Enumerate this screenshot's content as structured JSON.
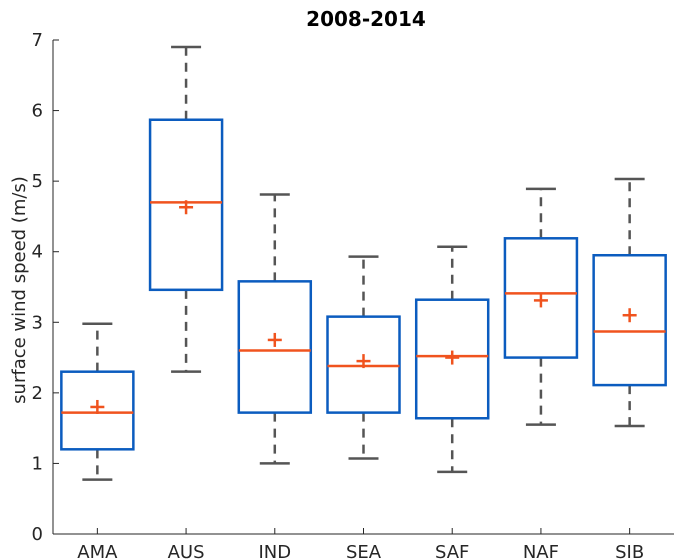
{
  "chart_data": {
    "type": "boxplot",
    "title": "2008-2014",
    "xlabel": "",
    "ylabel": "surface wind speed (m/s)",
    "ylim": [
      0,
      7
    ],
    "yticks": [
      "0",
      "1",
      "2",
      "3",
      "4",
      "5",
      "6",
      "7"
    ],
    "categories": [
      "AMA",
      "AUS",
      "IND",
      "SEA",
      "SAF",
      "NAF",
      "SIB"
    ],
    "boxes": [
      {
        "category": "AMA",
        "whisker_low": 0.77,
        "q1": 1.2,
        "median": 1.72,
        "q3": 2.3,
        "whisker_high": 2.98,
        "mean": 1.8
      },
      {
        "category": "AUS",
        "whisker_low": 2.3,
        "q1": 3.46,
        "median": 4.7,
        "q3": 5.87,
        "whisker_high": 6.9,
        "mean": 4.63
      },
      {
        "category": "IND",
        "whisker_low": 1.0,
        "q1": 1.72,
        "median": 2.6,
        "q3": 3.58,
        "whisker_high": 4.81,
        "mean": 2.75
      },
      {
        "category": "SEA",
        "whisker_low": 1.07,
        "q1": 1.72,
        "median": 2.38,
        "q3": 3.08,
        "whisker_high": 3.93,
        "mean": 2.45
      },
      {
        "category": "SAF",
        "whisker_low": 0.88,
        "q1": 1.64,
        "median": 2.52,
        "q3": 3.32,
        "whisker_high": 4.07,
        "mean": 2.5
      },
      {
        "category": "NAF",
        "whisker_low": 1.55,
        "q1": 2.5,
        "median": 3.41,
        "q3": 4.19,
        "whisker_high": 4.89,
        "mean": 3.31
      },
      {
        "category": "SIB",
        "whisker_low": 1.53,
        "q1": 2.11,
        "median": 2.87,
        "q3": 3.95,
        "whisker_high": 5.03,
        "mean": 3.1
      }
    ],
    "grid": false,
    "colors": {
      "box": "#0b5cbf",
      "median": "#f0531e",
      "mean": "#f0531e",
      "whisker": "#555555",
      "axis": "#262626"
    }
  }
}
